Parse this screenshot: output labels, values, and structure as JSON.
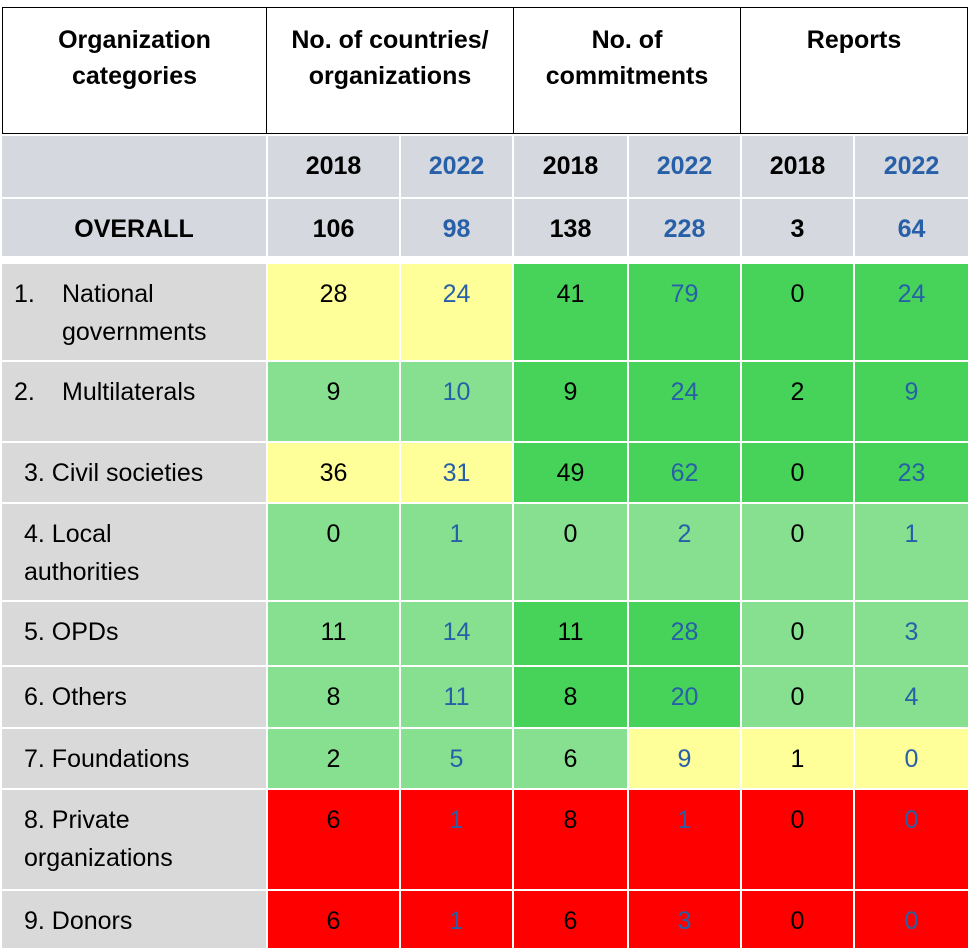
{
  "header": {
    "categories": "Organization categories",
    "countries": "No. of countries/ organizations",
    "commitments": "No. of commitments",
    "reports": "Reports"
  },
  "years": [
    "2018",
    "2022",
    "2018",
    "2022",
    "2018",
    "2022"
  ],
  "overall": {
    "label": "OVERALL",
    "values": [
      "106",
      "98",
      "138",
      "228",
      "3",
      "64"
    ]
  },
  "colors": {
    "yellow": "#ffff99",
    "light_green": "#86e08f",
    "dark_green": "#47d35a",
    "red": "#ff0000",
    "grey": "#d5d8de",
    "blue_text": "#2760a8"
  },
  "rows": [
    {
      "num": "1.",
      "label": "National governments",
      "values": [
        "28",
        "24",
        "41",
        "79",
        "0",
        "24"
      ]
    },
    {
      "num": "2.",
      "label": "Multilaterals",
      "values": [
        "9",
        "10",
        "9",
        "24",
        "2",
        "9"
      ]
    },
    {
      "label": "3. Civil societies",
      "values": [
        "36",
        "31",
        "49",
        "62",
        "0",
        "23"
      ]
    },
    {
      "label": "4. Local authorities",
      "values": [
        "0",
        "1",
        "0",
        "2",
        "0",
        "1"
      ]
    },
    {
      "label": "5. OPDs",
      "values": [
        "11",
        "14",
        "11",
        "28",
        "0",
        "3"
      ]
    },
    {
      "label": "6. Others",
      "values": [
        "8",
        "11",
        "8",
        "20",
        "0",
        "4"
      ]
    },
    {
      "label": "7. Foundations",
      "values": [
        "2",
        "5",
        "6",
        "9",
        "1",
        "0"
      ]
    },
    {
      "label": "8. Private organizations",
      "values": [
        "6",
        "1",
        "8",
        "1",
        "0",
        "0"
      ]
    },
    {
      "label": "9. Donors",
      "values": [
        "6",
        "1",
        "6",
        "3",
        "0",
        "0"
      ]
    }
  ]
}
